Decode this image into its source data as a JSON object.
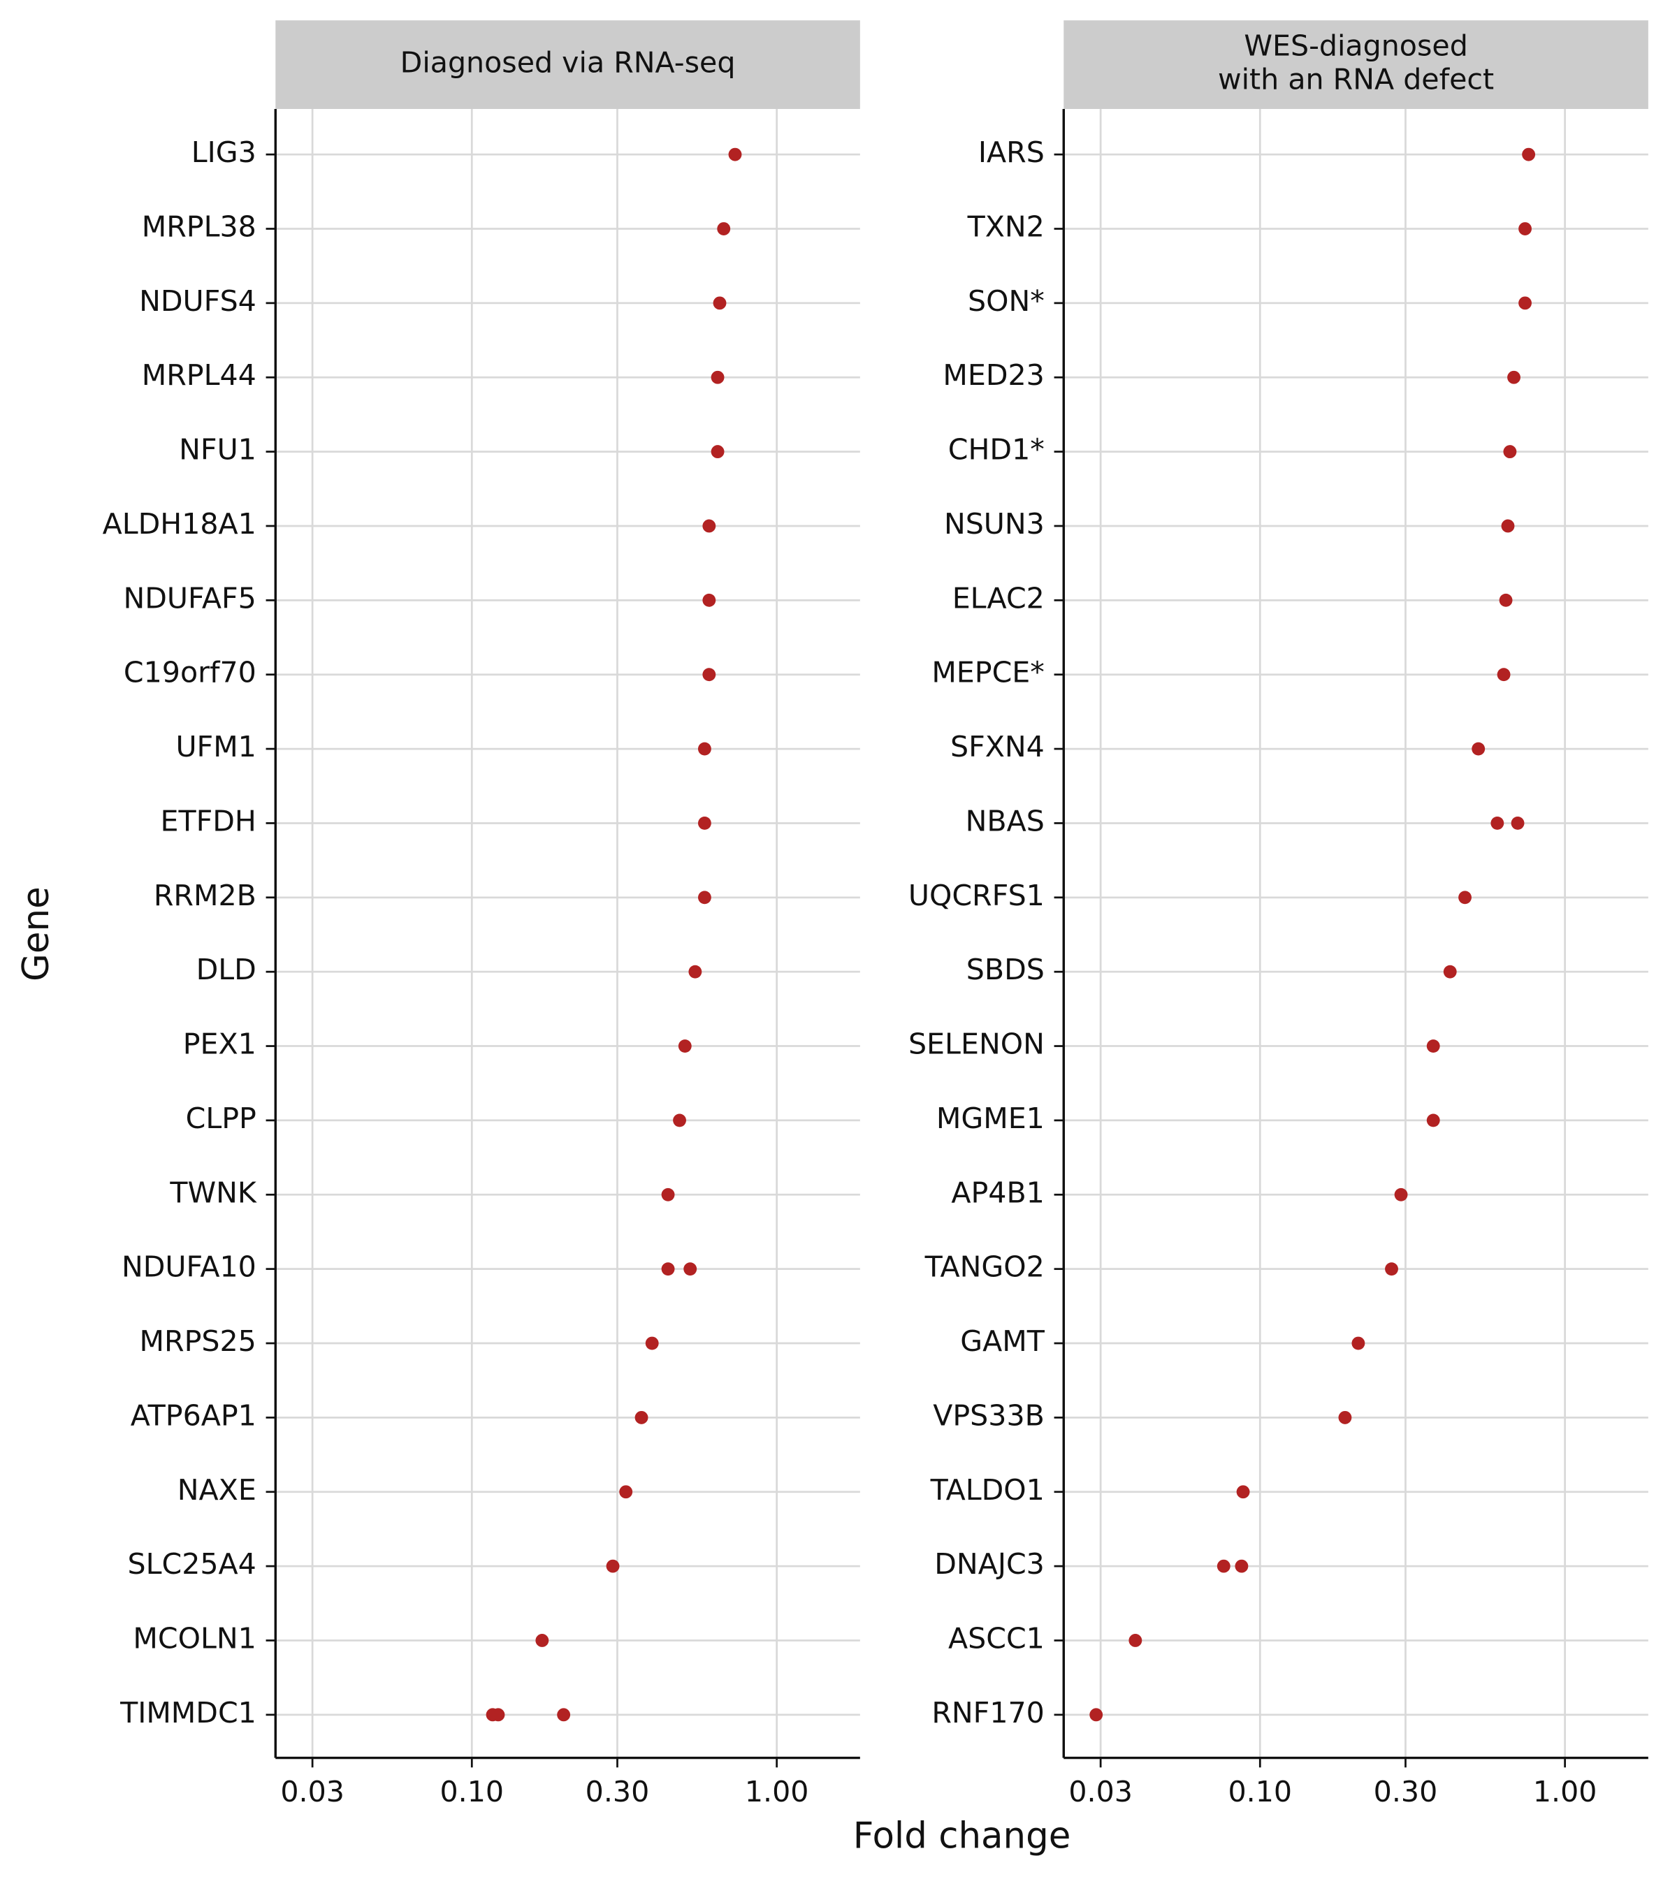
{
  "chart_data": {
    "type": "dot",
    "xlabel": "Fold change",
    "ylabel": "Gene",
    "xscale": "log",
    "grid": true,
    "color": "#b22222",
    "panels": [
      {
        "title": [
          "Diagnosed via RNA-seq"
        ],
        "categories": [
          "LIG3",
          "MRPL38",
          "NDUFS4",
          "MRPL44",
          "NFU1",
          "ALDH18A1",
          "NDUFAF5",
          "C19orf70",
          "UFM1",
          "ETFDH",
          "RRM2B",
          "DLD",
          "PEX1",
          "CLPP",
          "TWNK",
          "NDUFA10",
          "MRPS25",
          "ATP6AP1",
          "NAXE",
          "SLC25A4",
          "MCOLN1",
          "TIMMDC1"
        ],
        "values": [
          [
            0.73
          ],
          [
            0.67
          ],
          [
            0.65
          ],
          [
            0.64
          ],
          [
            0.64
          ],
          [
            0.6
          ],
          [
            0.6
          ],
          [
            0.6
          ],
          [
            0.58
          ],
          [
            0.58
          ],
          [
            0.58
          ],
          [
            0.54
          ],
          [
            0.5
          ],
          [
            0.48
          ],
          [
            0.44
          ],
          [
            0.44,
            0.52
          ],
          [
            0.39
          ],
          [
            0.36
          ],
          [
            0.32
          ],
          [
            0.29
          ],
          [
            0.17
          ],
          [
            0.117,
            0.122,
            0.2
          ]
        ],
        "xlim": [
          0.0227,
          1.876
        ],
        "xticks": [
          {
            "value": 0.03,
            "label": "0.03"
          },
          {
            "value": 0.1,
            "label": "0.10"
          },
          {
            "value": 0.3,
            "label": "0.30"
          },
          {
            "value": 1,
            "label": "1.00"
          }
        ]
      },
      {
        "title": [
          "WES-diagnosed",
          "with an RNA defect"
        ],
        "categories": [
          "IARS",
          "TXN2",
          "SON*",
          "MED23",
          "CHD1*",
          "NSUN3",
          "ELAC2",
          "MEPCE*",
          "SFXN4",
          "NBAS",
          "UQCRFS1",
          "SBDS",
          "SELENON",
          "MGME1",
          "AP4B1",
          "TANGO2",
          "GAMT",
          "VPS33B",
          "TALDO1",
          "DNAJC3",
          "ASCC1",
          "RNF170"
        ],
        "values": [
          [
            0.76
          ],
          [
            0.74
          ],
          [
            0.74
          ],
          [
            0.68
          ],
          [
            0.66
          ],
          [
            0.65
          ],
          [
            0.64
          ],
          [
            0.63
          ],
          [
            0.52
          ],
          [
            0.6,
            0.7
          ],
          [
            0.47
          ],
          [
            0.42
          ],
          [
            0.37
          ],
          [
            0.37
          ],
          [
            0.29
          ],
          [
            0.27
          ],
          [
            0.21
          ],
          [
            0.19
          ],
          [
            0.088
          ],
          [
            0.076,
            0.087
          ],
          [
            0.039
          ],
          [
            0.029
          ]
        ],
        "xlim": [
          0.0227,
          1.876
        ],
        "xticks": [
          {
            "value": 0.03,
            "label": "0.03"
          },
          {
            "value": 0.1,
            "label": "0.10"
          },
          {
            "value": 0.3,
            "label": "0.30"
          },
          {
            "value": 1,
            "label": "1.00"
          }
        ]
      }
    ]
  }
}
